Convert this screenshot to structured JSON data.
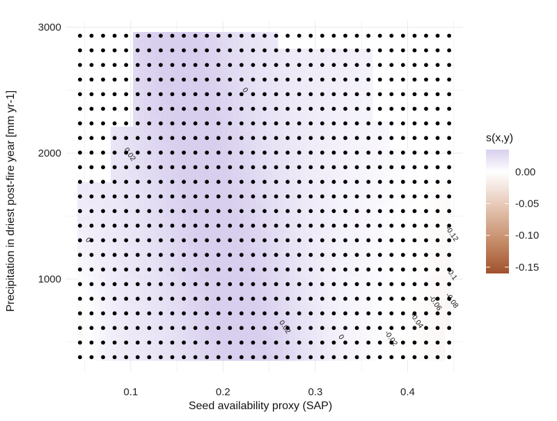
{
  "chart_data": {
    "type": "heatmap",
    "title": "",
    "xlabel": "Seed availability proxy (SAP)",
    "ylabel": "Precipitation in driest post-fire year [mm yr-1]",
    "xlim": [
      0.03,
      0.46
    ],
    "ylim": [
      260,
      3050
    ],
    "x_ticks": [
      {
        "value": 0.1,
        "label": "0.1"
      },
      {
        "value": 0.2,
        "label": "0.2"
      },
      {
        "value": 0.3,
        "label": "0.3"
      },
      {
        "value": 0.4,
        "label": "0.4"
      }
    ],
    "y_ticks": [
      {
        "value": 1000,
        "label": "1000"
      },
      {
        "value": 2000,
        "label": "2000"
      },
      {
        "value": 3000,
        "label": "3000"
      }
    ],
    "grid": true,
    "legend": {
      "title": "s(x,y)",
      "position": "right",
      "range": [
        -0.16,
        0.035
      ],
      "ticks": [
        {
          "value": 0.0,
          "label": "0.00"
        },
        {
          "value": -0.05,
          "label": "-0.05"
        },
        {
          "value": -0.1,
          "label": "-0.10"
        },
        {
          "value": -0.15,
          "label": "-0.15"
        }
      ]
    },
    "colors": {
      "low": "#a0522d",
      "mid": "#ffffff",
      "high": "#d8cfee"
    },
    "observation_grid": {
      "x_start": 0.045,
      "x_step": 0.0125,
      "x_count": 33,
      "y_start": 380,
      "y_step": 116,
      "y_count": 23
    },
    "contour_labels": [
      {
        "x": 0.222,
        "y": 2490,
        "label": "0"
      },
      {
        "x": 0.097,
        "y": 1980,
        "label": "0.02"
      },
      {
        "x": 0.052,
        "y": 1300,
        "label": "0"
      },
      {
        "x": 0.265,
        "y": 610,
        "label": "0.02"
      },
      {
        "x": 0.326,
        "y": 530,
        "label": "0"
      },
      {
        "x": 0.38,
        "y": 520,
        "label": "-0.02"
      },
      {
        "x": 0.408,
        "y": 660,
        "label": "-0.04"
      },
      {
        "x": 0.428,
        "y": 800,
        "label": "-0.06"
      },
      {
        "x": 0.446,
        "y": 820,
        "label": "-0.08"
      },
      {
        "x": 0.446,
        "y": 1030,
        "label": "-0.1"
      },
      {
        "x": 0.446,
        "y": 1350,
        "label": "-0.12"
      }
    ]
  }
}
